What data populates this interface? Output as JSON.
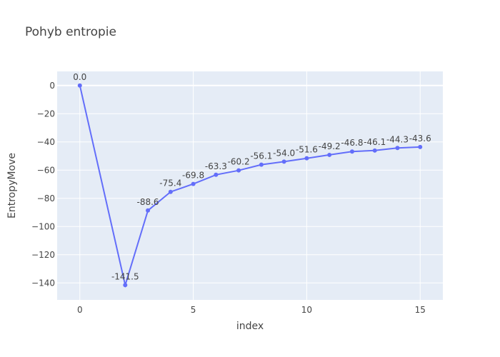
{
  "chart_data": {
    "type": "line",
    "title": "Pohyb entropie",
    "xlabel": "index",
    "ylabel": "EntropyMove",
    "xlim": [
      -1,
      16
    ],
    "ylim": [
      -152,
      10
    ],
    "xticks": [
      0,
      5,
      10,
      15
    ],
    "xtick_labels": [
      "0",
      "5",
      "10",
      "15"
    ],
    "yticks": [
      0,
      -20,
      -40,
      -60,
      -80,
      -100,
      -120,
      -140
    ],
    "ytick_labels": [
      "0",
      "−20",
      "−40",
      "−60",
      "−80",
      "−100",
      "−120",
      "−140"
    ],
    "grid": true,
    "line_color": "#636efa",
    "plot_bg": "#e5ecf6",
    "series": [
      {
        "x": [
          0,
          2,
          3,
          4,
          5,
          6,
          7,
          8,
          9,
          10,
          11,
          12,
          13,
          14,
          15
        ],
        "y": [
          0.0,
          -141.5,
          -88.6,
          -75.4,
          -69.8,
          -63.3,
          -60.2,
          -56.1,
          -54.0,
          -51.6,
          -49.2,
          -46.8,
          -46.1,
          -44.3,
          -43.6
        ],
        "labels": [
          "0.0",
          "-141.5",
          "-88.6",
          "-75.4",
          "-69.8",
          "-63.3",
          "-60.2",
          "-56.1",
          "-54.0",
          "-51.6",
          "-49.2",
          "-46.8",
          "-46.1",
          "-44.3",
          "-43.6"
        ]
      }
    ]
  }
}
